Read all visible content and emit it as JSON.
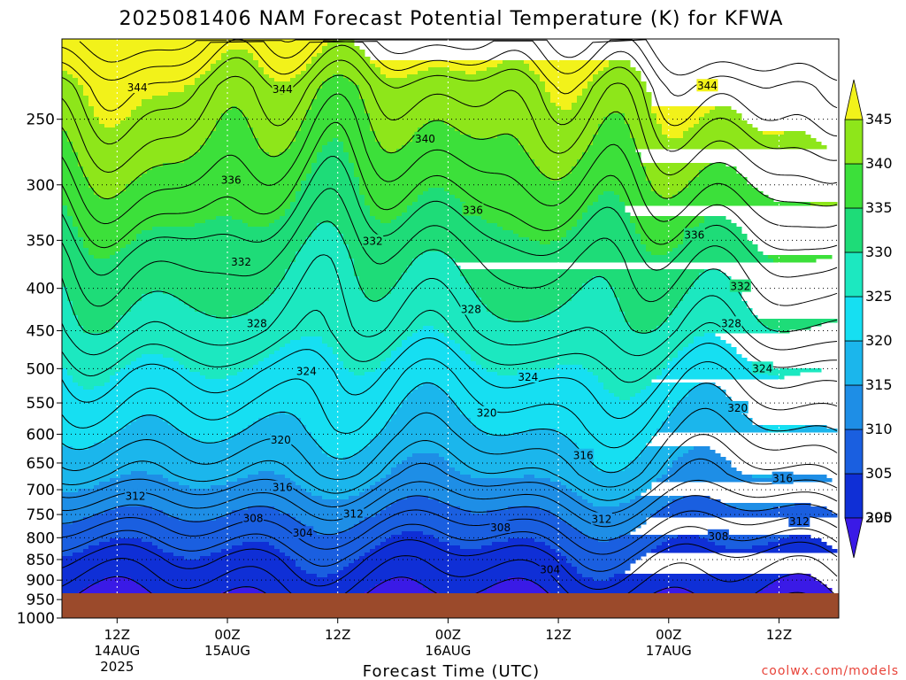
{
  "chart_data": {
    "type": "contour",
    "title": "2025081406 NAM Forecast Potential Temperature (K) for KFWA",
    "xlabel": "Forecast Time (UTC)",
    "credit": "coolwx.com/models",
    "y_axis": {
      "unit": "pressure level (hPa)",
      "log_scale": true,
      "inverted": true,
      "range": [
        1000,
        200
      ],
      "ticks": [
        250,
        300,
        350,
        400,
        450,
        500,
        550,
        600,
        650,
        700,
        750,
        800,
        850,
        900,
        950,
        1000
      ]
    },
    "x_axis": {
      "range_hours_utc": [
        "2025-08-14 06Z",
        "2025-08-17 23Z"
      ],
      "ticks": [
        {
          "hour": 6,
          "lines": [
            "12Z",
            "14AUG",
            "2025"
          ]
        },
        {
          "hour": 18,
          "lines": [
            "00Z",
            "15AUG"
          ]
        },
        {
          "hour": 30,
          "lines": [
            "12Z"
          ]
        },
        {
          "hour": 42,
          "lines": [
            "00Z",
            "16AUG"
          ]
        },
        {
          "hour": 54,
          "lines": [
            "12Z"
          ]
        },
        {
          "hour": 66,
          "lines": [
            "00Z",
            "17AUG"
          ]
        },
        {
          "hour": 78,
          "lines": [
            "12Z"
          ]
        }
      ],
      "grid": "dotted"
    },
    "colorbar": {
      "levels": [
        295,
        300,
        305,
        310,
        315,
        320,
        325,
        330,
        335,
        340,
        345
      ],
      "colors": [
        "#3a1ae6",
        "#0f2fd6",
        "#1a5fe0",
        "#1e8ee6",
        "#1bb6ec",
        "#16dff2",
        "#1ce8c0",
        "#1edc78",
        "#3ce03a",
        "#8ee61a",
        "#f2f21a"
      ],
      "under_color": "#3a1ae6",
      "over_color": "#f2f21a"
    },
    "isentropes": [
      {
        "theta": 304,
        "approx_pressure_hPa": 845
      },
      {
        "theta": 308,
        "approx_pressure_hPa": 778
      },
      {
        "theta": 312,
        "approx_pressure_hPa": 722
      },
      {
        "theta": 316,
        "approx_pressure_hPa": 670
      },
      {
        "theta": 320,
        "approx_pressure_hPa": 592
      },
      {
        "theta": 324,
        "approx_pressure_hPa": 505
      },
      {
        "theta": 328,
        "approx_pressure_hPa": 448
      },
      {
        "theta": 332,
        "approx_pressure_hPa": 368
      },
      {
        "theta": 336,
        "approx_pressure_hPa": 318
      },
      {
        "theta": 340,
        "approx_pressure_hPa": 272
      },
      {
        "theta": 344,
        "approx_pressure_hPa": 228
      }
    ],
    "contour_labels": [
      {
        "value": "344",
        "hour": 8.2,
        "p": 229
      },
      {
        "value": "344",
        "hour": 24,
        "p": 230
      },
      {
        "value": "344",
        "hour": 70.2,
        "p": 228
      },
      {
        "value": "340",
        "hour": 39.5,
        "p": 264
      },
      {
        "value": "336",
        "hour": 18.4,
        "p": 296
      },
      {
        "value": "336",
        "hour": 44.7,
        "p": 322
      },
      {
        "value": "336",
        "hour": 68.8,
        "p": 345
      },
      {
        "value": "332",
        "hour": 33.8,
        "p": 351
      },
      {
        "value": "332",
        "hour": 19.5,
        "p": 372
      },
      {
        "value": "332",
        "hour": 73.8,
        "p": 398
      },
      {
        "value": "328",
        "hour": 21.2,
        "p": 441
      },
      {
        "value": "328",
        "hour": 44.5,
        "p": 424
      },
      {
        "value": "328",
        "hour": 72.8,
        "p": 441
      },
      {
        "value": "324",
        "hour": 26.6,
        "p": 504
      },
      {
        "value": "324",
        "hour": 50.7,
        "p": 512
      },
      {
        "value": "324",
        "hour": 76.2,
        "p": 500
      },
      {
        "value": "320",
        "hour": 46.2,
        "p": 566
      },
      {
        "value": "320",
        "hour": 73.5,
        "p": 558
      },
      {
        "value": "320",
        "hour": 23.8,
        "p": 610
      },
      {
        "value": "316",
        "hour": 56.7,
        "p": 637
      },
      {
        "value": "316",
        "hour": 24.0,
        "p": 696
      },
      {
        "value": "316",
        "hour": 78.4,
        "p": 679
      },
      {
        "value": "312",
        "hour": 8.0,
        "p": 713
      },
      {
        "value": "312",
        "hour": 31.7,
        "p": 749
      },
      {
        "value": "312",
        "hour": 58.7,
        "p": 760
      },
      {
        "value": "312",
        "hour": 80.2,
        "p": 765
      },
      {
        "value": "308",
        "hour": 20.8,
        "p": 758
      },
      {
        "value": "308",
        "hour": 47.7,
        "p": 778
      },
      {
        "value": "308",
        "hour": 71.4,
        "p": 797
      },
      {
        "value": "304",
        "hour": 26.2,
        "p": 790
      },
      {
        "value": "304",
        "hour": 53.1,
        "p": 875
      }
    ],
    "surface_pressure_hPa": 975,
    "grid": true
  }
}
